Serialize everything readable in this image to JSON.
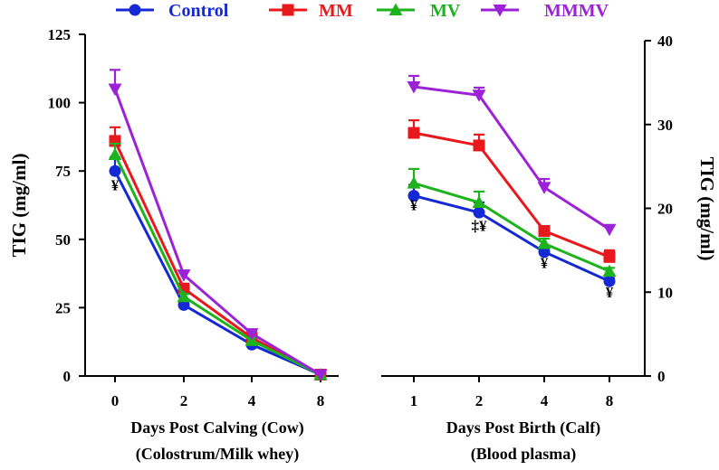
{
  "chart_data": [
    {
      "id": "left",
      "type": "line",
      "title": "",
      "ylabel": "TIG (mg/ml)",
      "xlabel_lines": [
        "Days Post Calving (Cow)",
        "(Colostrum/Milk whey)"
      ],
      "ylim": [
        0,
        125
      ],
      "yticks": [
        "0",
        "25",
        "50",
        "75",
        "100",
        "125"
      ],
      "categories": [
        "0",
        "2",
        "4",
        "8"
      ],
      "series": [
        {
          "name": "Control",
          "values": [
            75,
            26,
            11.5,
            0.5
          ],
          "errors": [
            5,
            1,
            1,
            0.3
          ]
        },
        {
          "name": "MM",
          "values": [
            86,
            32,
            14,
            0.5
          ],
          "errors": [
            5,
            1.5,
            1,
            0.3
          ]
        },
        {
          "name": "MV",
          "values": [
            81,
            29,
            13,
            0.5
          ],
          "errors": [
            4,
            1,
            1,
            0.3
          ]
        },
        {
          "name": "MMMV",
          "values": [
            105,
            37,
            15.5,
            0.5
          ],
          "errors": [
            7,
            1.5,
            1,
            0.3
          ]
        }
      ],
      "annotations": [
        {
          "category": "0",
          "value": 68,
          "text": "¥"
        }
      ]
    },
    {
      "id": "right",
      "type": "line",
      "title": "",
      "ylabel": "TIG (mg/ml)",
      "ylabel_side": "right",
      "xlabel_lines": [
        "Days Post Birth (Calf)",
        "(Blood plasma)"
      ],
      "ylim": [
        0,
        40
      ],
      "yticks": [
        "0",
        "10",
        "20",
        "30",
        "40"
      ],
      "categories": [
        "1",
        "2",
        "4",
        "8"
      ],
      "series": [
        {
          "name": "Control",
          "values": [
            21.5,
            19.5,
            14.8,
            11.3
          ],
          "errors": [
            1.3,
            1.2,
            0.6,
            0.4
          ]
        },
        {
          "name": "MM",
          "values": [
            29,
            27.5,
            17.3,
            14.2
          ],
          "errors": [
            1.5,
            1.3,
            0.5,
            0.8
          ]
        },
        {
          "name": "MV",
          "values": [
            23,
            20.7,
            15.8,
            12.5
          ],
          "errors": [
            1.7,
            1.3,
            0.6,
            0.4
          ]
        },
        {
          "name": "MMMV",
          "values": [
            34.5,
            33.5,
            22.5,
            17.5
          ],
          "errors": [
            1.3,
            0.9,
            1,
            0.4
          ]
        }
      ],
      "annotations": [
        {
          "category": "1",
          "value": 19.8,
          "text": "¥"
        },
        {
          "category": "2",
          "value": 17.3,
          "text": "‡¥"
        },
        {
          "category": "4",
          "value": 12.9,
          "text": "¥"
        },
        {
          "category": "8",
          "value": 9.4,
          "text": "¥"
        }
      ]
    }
  ],
  "legend": [
    {
      "name": "Control",
      "color": "#1428d4",
      "marker": "circle"
    },
    {
      "name": "MM",
      "color": "#e8191c",
      "marker": "square"
    },
    {
      "name": "MV",
      "color": "#1db31d",
      "marker": "triangle-up"
    },
    {
      "name": "MMMV",
      "color": "#9b22d6",
      "marker": "triangle-down"
    }
  ]
}
